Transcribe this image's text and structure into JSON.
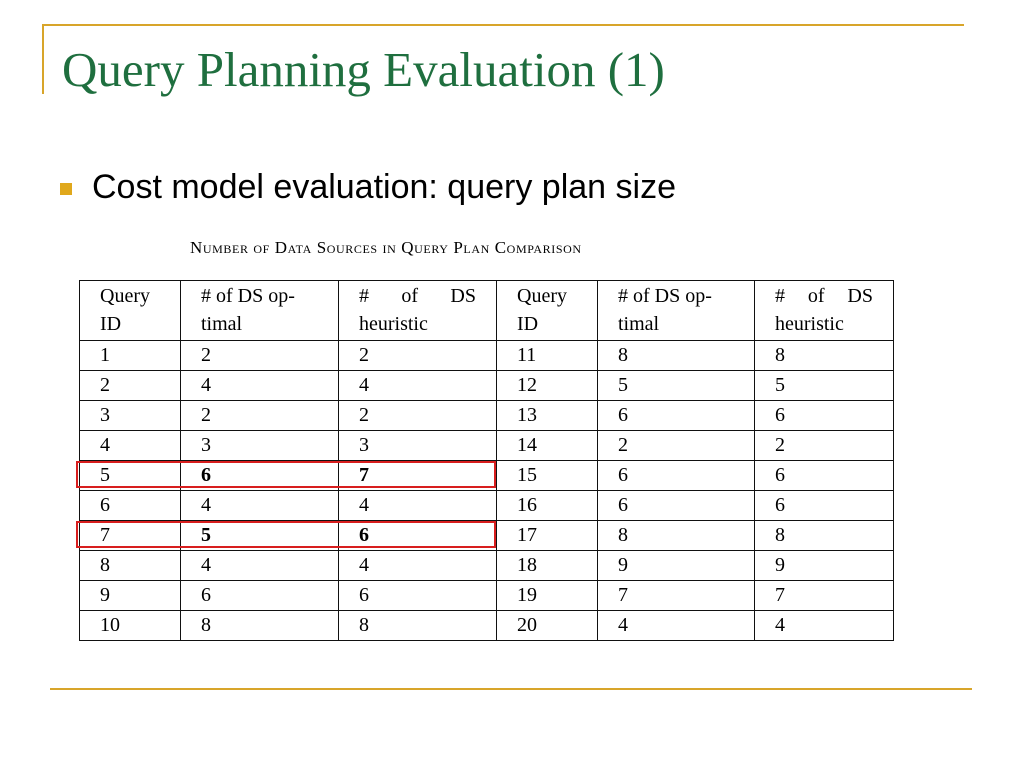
{
  "slide": {
    "title": "Query Planning Evaluation (1)",
    "bullet": "Cost model evaluation: query plan size",
    "caption": "Number of Data Sources in Query Plan Comparison",
    "accent_color": "#d8a52a",
    "title_color": "#1f6f3f",
    "highlight_color": "#d81e1e"
  },
  "table": {
    "headers": {
      "query_id": [
        "Query",
        "ID"
      ],
      "optimal": [
        "# of DS op-",
        "timal"
      ],
      "heuristic_words": [
        "#",
        "of",
        "DS"
      ],
      "heuristic_line2": "heuristic"
    },
    "rows": [
      {
        "q1": "1",
        "o1": "2",
        "h1": "2",
        "q2": "11",
        "o2": "8",
        "h2": "8"
      },
      {
        "q1": "2",
        "o1": "4",
        "h1": "4",
        "q2": "12",
        "o2": "5",
        "h2": "5"
      },
      {
        "q1": "3",
        "o1": "2",
        "h1": "2",
        "q2": "13",
        "o2": "6",
        "h2": "6"
      },
      {
        "q1": "4",
        "o1": "3",
        "h1": "3",
        "q2": "14",
        "o2": "2",
        "h2": "2"
      },
      {
        "q1": "5",
        "o1": "6",
        "h1": "7",
        "q2": "15",
        "o2": "6",
        "h2": "6"
      },
      {
        "q1": "6",
        "o1": "4",
        "h1": "4",
        "q2": "16",
        "o2": "6",
        "h2": "6"
      },
      {
        "q1": "7",
        "o1": "5",
        "h1": "6",
        "q2": "17",
        "o2": "8",
        "h2": "8"
      },
      {
        "q1": "8",
        "o1": "4",
        "h1": "4",
        "q2": "18",
        "o2": "9",
        "h2": "9"
      },
      {
        "q1": "9",
        "o1": "6",
        "h1": "6",
        "q2": "19",
        "o2": "7",
        "h2": "7"
      },
      {
        "q1": "10",
        "o1": "8",
        "h1": "8",
        "q2": "20",
        "o2": "4",
        "h2": "4"
      }
    ]
  }
}
